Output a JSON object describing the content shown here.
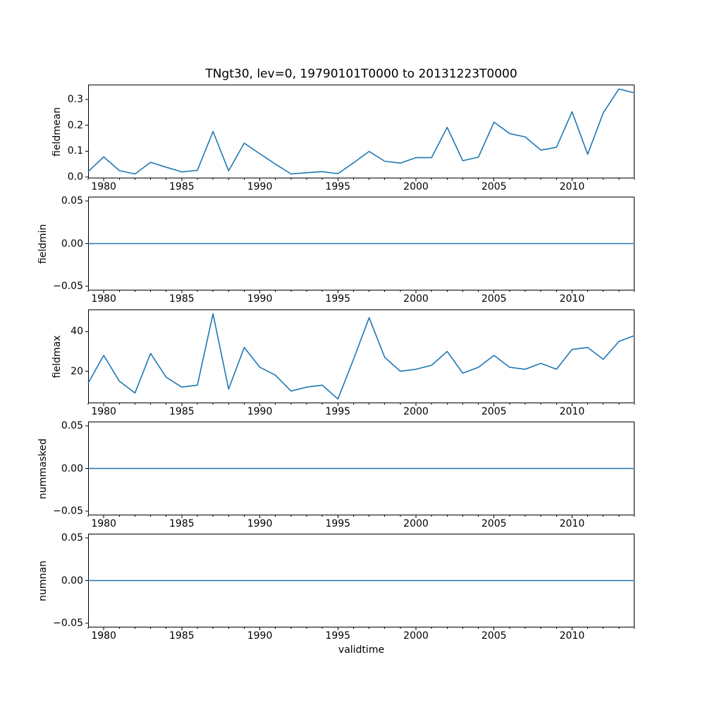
{
  "figure": {
    "title": "TNgt30, lev=0, 19790101T0000 to 20131223T0000",
    "xlabel": "validtime",
    "background_color": "#ffffff",
    "line_color": "#1f77b4",
    "spine_color": "#000000"
  },
  "axis_x": {
    "xlim": [
      1979,
      2014
    ],
    "major_ticks": [
      1980,
      1985,
      1990,
      1995,
      2000,
      2005,
      2010
    ],
    "major_tick_labels": [
      "1980",
      "1985",
      "1990",
      "1995",
      "2000",
      "2005",
      "2010"
    ],
    "minor_tick_years": [
      1979,
      1980,
      1981,
      1982,
      1983,
      1984,
      1985,
      1986,
      1987,
      1988,
      1989,
      1990,
      1991,
      1992,
      1993,
      1994,
      1995,
      1996,
      1997,
      1998,
      1999,
      2000,
      2001,
      2002,
      2003,
      2004,
      2005,
      2006,
      2007,
      2008,
      2009,
      2010,
      2011,
      2012,
      2013,
      2014
    ]
  },
  "chart_data": [
    {
      "type": "line",
      "name": "fieldmean",
      "ylabel": "fieldmean",
      "legend": "none",
      "grid": false,
      "x": [
        1979,
        1980,
        1981,
        1982,
        1983,
        1984,
        1985,
        1986,
        1987,
        1988,
        1989,
        1990,
        1991,
        1992,
        1993,
        1994,
        1995,
        1996,
        1997,
        1998,
        1999,
        2000,
        2001,
        2002,
        2003,
        2004,
        2005,
        2006,
        2007,
        2008,
        2009,
        2010,
        2011,
        2012,
        2013,
        2014
      ],
      "values": [
        0.021,
        0.078,
        0.025,
        0.012,
        0.057,
        0.038,
        0.02,
        0.026,
        0.176,
        0.024,
        0.131,
        0.09,
        0.05,
        0.012,
        0.017,
        0.021,
        0.013,
        0.055,
        0.099,
        0.061,
        0.054,
        0.075,
        0.075,
        0.192,
        0.063,
        0.077,
        0.212,
        0.168,
        0.155,
        0.104,
        0.115,
        0.252,
        0.088,
        0.248,
        0.34,
        0.325
      ],
      "yticks": [
        0.0,
        0.1,
        0.2,
        0.3
      ],
      "ytick_labels": [
        "0.0",
        "0.1",
        "0.2",
        "0.3"
      ],
      "ylim": [
        -0.005,
        0.357
      ]
    },
    {
      "type": "line",
      "name": "fieldmin",
      "ylabel": "fieldmin",
      "legend": "none",
      "grid": false,
      "x": [
        1979,
        1980,
        1981,
        1982,
        1983,
        1984,
        1985,
        1986,
        1987,
        1988,
        1989,
        1990,
        1991,
        1992,
        1993,
        1994,
        1995,
        1996,
        1997,
        1998,
        1999,
        2000,
        2001,
        2002,
        2003,
        2004,
        2005,
        2006,
        2007,
        2008,
        2009,
        2010,
        2011,
        2012,
        2013,
        2014
      ],
      "values": [
        0,
        0,
        0,
        0,
        0,
        0,
        0,
        0,
        0,
        0,
        0,
        0,
        0,
        0,
        0,
        0,
        0,
        0,
        0,
        0,
        0,
        0,
        0,
        0,
        0,
        0,
        0,
        0,
        0,
        0,
        0,
        0,
        0,
        0,
        0,
        0
      ],
      "yticks": [
        -0.05,
        0.0,
        0.05
      ],
      "ytick_labels": [
        "−0.05",
        "0.00",
        "0.05"
      ],
      "ylim": [
        -0.055,
        0.055
      ]
    },
    {
      "type": "line",
      "name": "fieldmax",
      "ylabel": "fieldmax",
      "legend": "none",
      "grid": false,
      "x": [
        1979,
        1980,
        1981,
        1982,
        1983,
        1984,
        1985,
        1986,
        1987,
        1988,
        1989,
        1990,
        1991,
        1992,
        1993,
        1994,
        1995,
        1996,
        1997,
        1998,
        1999,
        2000,
        2001,
        2002,
        2003,
        2004,
        2005,
        2006,
        2007,
        2008,
        2009,
        2010,
        2011,
        2012,
        2013,
        2014
      ],
      "values": [
        14,
        28,
        15,
        9,
        29,
        17,
        12,
        13,
        49,
        11,
        32,
        22,
        18,
        10,
        12,
        13,
        6,
        26,
        47,
        27,
        20,
        21,
        23,
        30,
        19,
        22,
        28,
        22,
        21,
        24,
        21,
        31,
        32,
        26,
        35,
        38
      ],
      "yticks": [
        20,
        40
      ],
      "ytick_labels": [
        "20",
        "40"
      ],
      "ylim": [
        3.85,
        51.15
      ]
    },
    {
      "type": "line",
      "name": "nummasked",
      "ylabel": "nummasked",
      "legend": "none",
      "grid": false,
      "x": [
        1979,
        1980,
        1981,
        1982,
        1983,
        1984,
        1985,
        1986,
        1987,
        1988,
        1989,
        1990,
        1991,
        1992,
        1993,
        1994,
        1995,
        1996,
        1997,
        1998,
        1999,
        2000,
        2001,
        2002,
        2003,
        2004,
        2005,
        2006,
        2007,
        2008,
        2009,
        2010,
        2011,
        2012,
        2013,
        2014
      ],
      "values": [
        0,
        0,
        0,
        0,
        0,
        0,
        0,
        0,
        0,
        0,
        0,
        0,
        0,
        0,
        0,
        0,
        0,
        0,
        0,
        0,
        0,
        0,
        0,
        0,
        0,
        0,
        0,
        0,
        0,
        0,
        0,
        0,
        0,
        0,
        0,
        0
      ],
      "yticks": [
        -0.05,
        0.0,
        0.05
      ],
      "ytick_labels": [
        "−0.05",
        "0.00",
        "0.05"
      ],
      "ylim": [
        -0.055,
        0.055
      ]
    },
    {
      "type": "line",
      "name": "numnan",
      "ylabel": "numnan",
      "legend": "none",
      "grid": false,
      "x": [
        1979,
        1980,
        1981,
        1982,
        1983,
        1984,
        1985,
        1986,
        1987,
        1988,
        1989,
        1990,
        1991,
        1992,
        1993,
        1994,
        1995,
        1996,
        1997,
        1998,
        1999,
        2000,
        2001,
        2002,
        2003,
        2004,
        2005,
        2006,
        2007,
        2008,
        2009,
        2010,
        2011,
        2012,
        2013,
        2014
      ],
      "values": [
        0,
        0,
        0,
        0,
        0,
        0,
        0,
        0,
        0,
        0,
        0,
        0,
        0,
        0,
        0,
        0,
        0,
        0,
        0,
        0,
        0,
        0,
        0,
        0,
        0,
        0,
        0,
        0,
        0,
        0,
        0,
        0,
        0,
        0,
        0,
        0
      ],
      "yticks": [
        -0.05,
        0.0,
        0.05
      ],
      "ytick_labels": [
        "−0.05",
        "0.00",
        "0.05"
      ],
      "ylim": [
        -0.055,
        0.055
      ]
    }
  ]
}
